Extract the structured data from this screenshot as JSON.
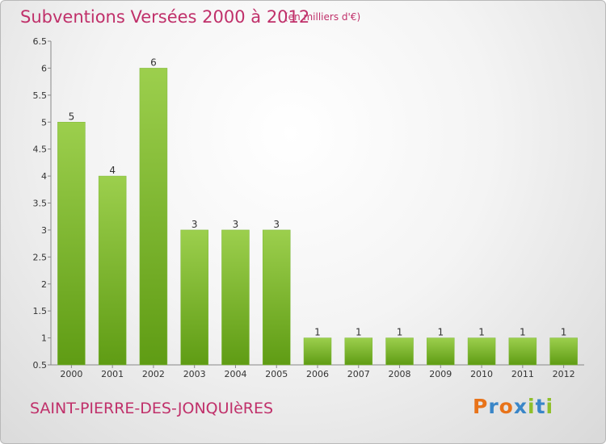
{
  "header": {
    "title": "Subventions Versées 2000 à 2012",
    "subtitle": "(en milliers d'€)"
  },
  "footer": {
    "commune": "SAINT-PIERRE-DES-JONQUIèRES",
    "logo_text": "Proxiti"
  },
  "colors": {
    "title": "#c0306a",
    "bar_light": "#9ccf4d",
    "bar_dark": "#5f9c14",
    "logo_letters": [
      "#e8731a",
      "#3a86c8",
      "#e8731a",
      "#3a86c8",
      "#8fbf2a",
      "#3a86c8",
      "#8fbf2a"
    ]
  },
  "chart_data": {
    "type": "bar",
    "title": "Subventions Versées 2000 à 2012",
    "subtitle": "(en milliers d'€)",
    "categories": [
      "2000",
      "2001",
      "2002",
      "2003",
      "2004",
      "2005",
      "2006",
      "2007",
      "2008",
      "2009",
      "2010",
      "2011",
      "2012"
    ],
    "values": [
      5,
      4,
      6,
      3,
      3,
      3,
      1,
      1,
      1,
      1,
      1,
      1,
      1
    ],
    "data_labels": [
      "5",
      "4",
      "6",
      "3",
      "3",
      "3",
      "1",
      "1",
      "1",
      "1",
      "1",
      "1",
      "1"
    ],
    "yticks": [
      "0.5",
      "1",
      "1.5",
      "2",
      "2.5",
      "3",
      "3.5",
      "4",
      "4.5",
      "5",
      "5.5",
      "6",
      "6.5"
    ],
    "ylim": [
      0.5,
      6.5
    ],
    "xlabel": "",
    "ylabel": "",
    "grid": false,
    "legend": "none"
  }
}
